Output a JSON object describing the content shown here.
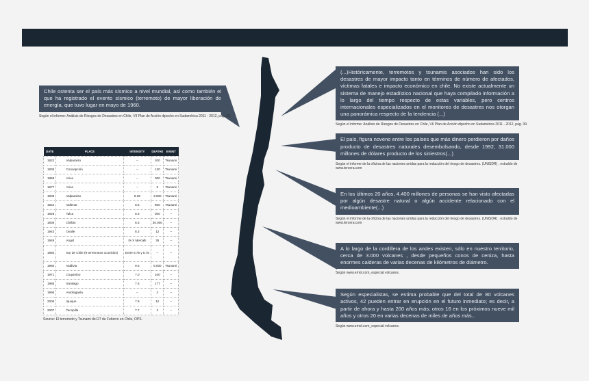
{
  "colors": {
    "header_bar": "#1b2633",
    "callout": "#435062",
    "map": "#1b2633"
  },
  "left": {
    "text": "Chile ostenta ser el país más sísmico a nivel mundial, así como también el que ha registrado el evento sísmico (terremoto) de mayor liberación de energía, que tuvo lugar en mayo de 1960.",
    "source": "Según el informe: Análisis de Riesgos de Desastres en Chile, VII Plan de Acción dipecho en Sudamérica 2011 - 2012, pág. 39."
  },
  "table": {
    "headers": [
      "DATE",
      "PLACE",
      "INTENSITY",
      "DEATHS",
      "EVENT"
    ],
    "rows": [
      [
        "1822",
        "Valparaíso",
        "–",
        "200",
        "Tsunami"
      ],
      [
        "1835",
        "Concepción",
        "–",
        "120",
        "Tsunami"
      ],
      [
        "1868",
        "Arica",
        "–",
        "300",
        "Tsunami"
      ],
      [
        "1877",
        "Arica",
        "–",
        "5",
        "Tsunami"
      ],
      [
        "1906",
        "Valparaíso",
        "8.39",
        "3.000",
        "Tsunami"
      ],
      [
        "1922",
        "Vallenar",
        "8.5",
        "800",
        "Tsunami"
      ],
      [
        "1928",
        "Talca",
        "8.3",
        "300",
        "–"
      ],
      [
        "1939",
        "Chillán",
        "8.3",
        "30.000",
        "–"
      ],
      [
        "1943",
        "Ovalle",
        "8.3",
        "12",
        "–"
      ],
      [
        "1949",
        "Angol",
        "IX-X Mercalli",
        "35",
        "–"
      ],
      [
        "1960",
        "Sur de Chile (9 terremotos ocurridos)",
        "Entre 6.75 y 8.75",
        "–",
        "–"
      ],
      [
        "1960",
        "Valdivia",
        "9.5",
        "6.000",
        "Tsunami"
      ],
      [
        "1971",
        "Coquimbo",
        "7.0",
        "100",
        "–"
      ],
      [
        "1985",
        "Santiago",
        "7.5",
        "177",
        "–"
      ],
      [
        "1995",
        "Antofagasta",
        "–",
        "3",
        "–"
      ],
      [
        "2005",
        "Iquique",
        "7.9",
        "12",
        "–"
      ],
      [
        "2007",
        "Tocopilla",
        "7.7",
        "2",
        "–"
      ]
    ],
    "source": "Source: El terremoto y Tsunami del 27 de Febrero en Chile,  OPS."
  },
  "callouts": [
    {
      "text": "(...)Históricamente, terremotos y tsunamis asociados han sido los desastres de mayor impacto tanto en términos de número de afectados, víctimas fatales e impacto económico en chile. No existe actualmente un sistema de manejo estadístico nacional que haya compilado información a lo largo del tiempo respecto de estas variables, pero centros internacionales especializados en el monitoreo de desastres nos otorgan una panorámica respecto de la tendencia (...)",
      "source": "Según el informe: Análisis de Riesgos de Desastres en Chile, VII Plan de Acción dipecho en Sudamérica 2011 - 2012, pág. 39."
    },
    {
      "text": "El país, figura noveno entre los países que más dinero perdieron por daños producto de desastres naturales desembolsando, desde 1992, 31.000 millones de dólares producto de los siniestros(...)",
      "source": "Según el informe de la oficina de las naciones unidas para la reducción del riesgo de desastres. (UNISDR) , extraído de www.tercera.com"
    },
    {
      "text": "En los últimos 20 años, 4.400 millones de personas se han visto afectadas por algún desastre natural o algún accidente relacionado con el medioambiente(...)",
      "source": "Según el informe de la oficina de las naciones unidas para la reducción del riesgo de desastres. (UNISDR) , extraído de www.tercera.com"
    },
    {
      "text": "A lo largo de la cordillera de los andes existen, sólo en nuestro territorio, cerca de 3.000 volcanes , desde pequeños conos de ceniza, hasta enormes calderas de varias decenas de kilómetros de diámetro.",
      "source": "Según www.emol.com_especial volcanes."
    },
    {
      "text": "Según especialistas, se estima probable que del total de 80 volcanes activos, 42 pueden entrar en erupción en el futuro inmediato; es decir, a partir de ahora y hasta 200 años más; otros 16 en los próximos nueve mil años y otros 20 en varias decenas de miles de años más..",
      "source": "Según www.emol.com_especial volcanes."
    }
  ]
}
